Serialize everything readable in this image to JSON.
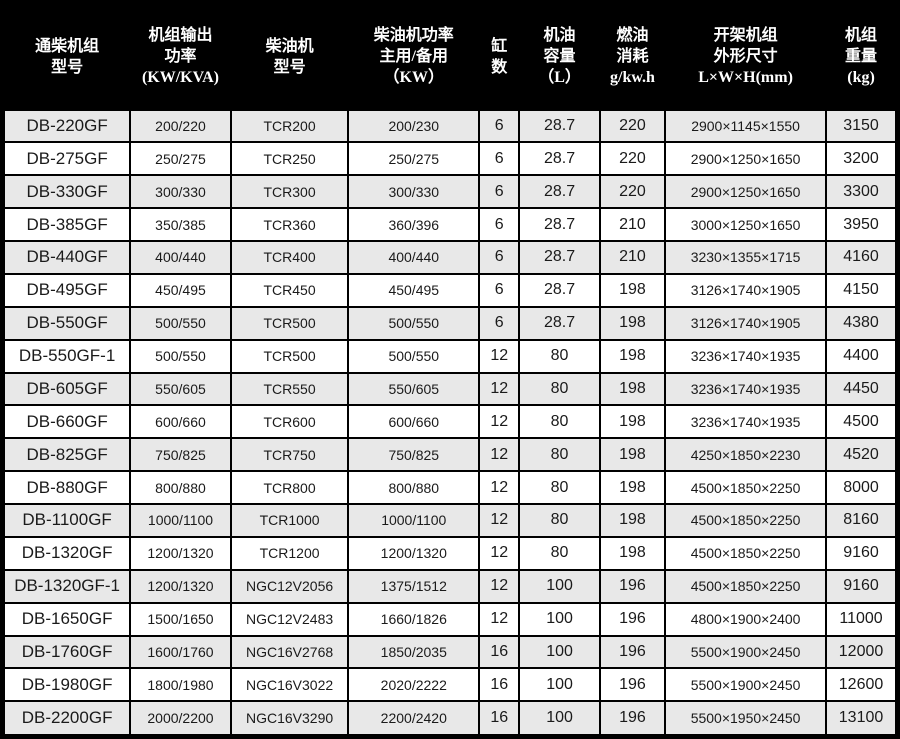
{
  "colors": {
    "header_background": "#000000",
    "header_text": "#ffffff",
    "row_shaded": "#e8e8e8",
    "row_plain": "#ffffff",
    "grid_border": "#000000",
    "body_text": "#1a1a1a"
  },
  "chart_data": {
    "type": "table",
    "columns": [
      {
        "name": "unit-model",
        "lines": [
          "通柴机组",
          "型号"
        ]
      },
      {
        "name": "output-power",
        "lines": [
          "机组输出",
          "功率",
          "(KW/KVA)"
        ]
      },
      {
        "name": "engine-model",
        "lines": [
          "柴油机",
          "型号"
        ]
      },
      {
        "name": "engine-power",
        "lines": [
          "柴油机功率",
          "主用/备用",
          "（KW）"
        ]
      },
      {
        "name": "cylinder-count",
        "lines": [
          "缸",
          "数"
        ]
      },
      {
        "name": "oil-capacity",
        "lines": [
          "机油",
          "容量",
          "（L）"
        ]
      },
      {
        "name": "fuel-consumption",
        "lines": [
          "燃油",
          "消耗",
          "g/kw.h"
        ]
      },
      {
        "name": "unit-dimensions",
        "lines": [
          "开架机组",
          "外形尺寸",
          "L×W×H(mm)"
        ]
      },
      {
        "name": "unit-weight",
        "lines": [
          "机组",
          "重量",
          "(kg)"
        ]
      }
    ],
    "rows": [
      [
        "DB-220GF",
        "200/220",
        "TCR200",
        "200/230",
        "6",
        "28.7",
        "220",
        "2900×1145×1550",
        "3150"
      ],
      [
        "DB-275GF",
        "250/275",
        "TCR250",
        "250/275",
        "6",
        "28.7",
        "220",
        "2900×1250×1650",
        "3200"
      ],
      [
        "DB-330GF",
        "300/330",
        "TCR300",
        "300/330",
        "6",
        "28.7",
        "220",
        "2900×1250×1650",
        "3300"
      ],
      [
        "DB-385GF",
        "350/385",
        "TCR360",
        "360/396",
        "6",
        "28.7",
        "210",
        "3000×1250×1650",
        "3950"
      ],
      [
        "DB-440GF",
        "400/440",
        "TCR400",
        "400/440",
        "6",
        "28.7",
        "210",
        "3230×1355×1715",
        "4160"
      ],
      [
        "DB-495GF",
        "450/495",
        "TCR450",
        "450/495",
        "6",
        "28.7",
        "198",
        "3126×1740×1905",
        "4150"
      ],
      [
        "DB-550GF",
        "500/550",
        "TCR500",
        "500/550",
        "6",
        "28.7",
        "198",
        "3126×1740×1905",
        "4380"
      ],
      [
        "DB-550GF-1",
        "500/550",
        "TCR500",
        "500/550",
        "12",
        "80",
        "198",
        "3236×1740×1935",
        "4400"
      ],
      [
        "DB-605GF",
        "550/605",
        "TCR550",
        "550/605",
        "12",
        "80",
        "198",
        "3236×1740×1935",
        "4450"
      ],
      [
        "DB-660GF",
        "600/660",
        "TCR600",
        "600/660",
        "12",
        "80",
        "198",
        "3236×1740×1935",
        "4500"
      ],
      [
        "DB-825GF",
        "750/825",
        "TCR750",
        "750/825",
        "12",
        "80",
        "198",
        "4250×1850×2230",
        "4520"
      ],
      [
        "DB-880GF",
        "800/880",
        "TCR800",
        "800/880",
        "12",
        "80",
        "198",
        "4500×1850×2250",
        "8000"
      ],
      [
        "DB-1100GF",
        "1000/1100",
        "TCR1000",
        "1000/1100",
        "12",
        "80",
        "198",
        "4500×1850×2250",
        "8160"
      ],
      [
        "DB-1320GF",
        "1200/1320",
        "TCR1200",
        "1200/1320",
        "12",
        "80",
        "198",
        "4500×1850×2250",
        "9160"
      ],
      [
        "DB-1320GF-1",
        "1200/1320",
        "NGC12V2056",
        "1375/1512",
        "12",
        "100",
        "196",
        "4500×1850×2250",
        "9160"
      ],
      [
        "DB-1650GF",
        "1500/1650",
        "NGC12V2483",
        "1660/1826",
        "12",
        "100",
        "196",
        "4800×1900×2400",
        "11000"
      ],
      [
        "DB-1760GF",
        "1600/1760",
        "NGC16V2768",
        "1850/2035",
        "16",
        "100",
        "196",
        "5500×1900×2450",
        "12000"
      ],
      [
        "DB-1980GF",
        "1800/1980",
        "NGC16V3022",
        "2020/2222",
        "16",
        "100",
        "196",
        "5500×1900×2450",
        "12600"
      ],
      [
        "DB-2200GF",
        "2000/2200",
        "NGC16V3290",
        "2200/2420",
        "16",
        "100",
        "196",
        "5500×1950×2450",
        "13100"
      ]
    ]
  }
}
